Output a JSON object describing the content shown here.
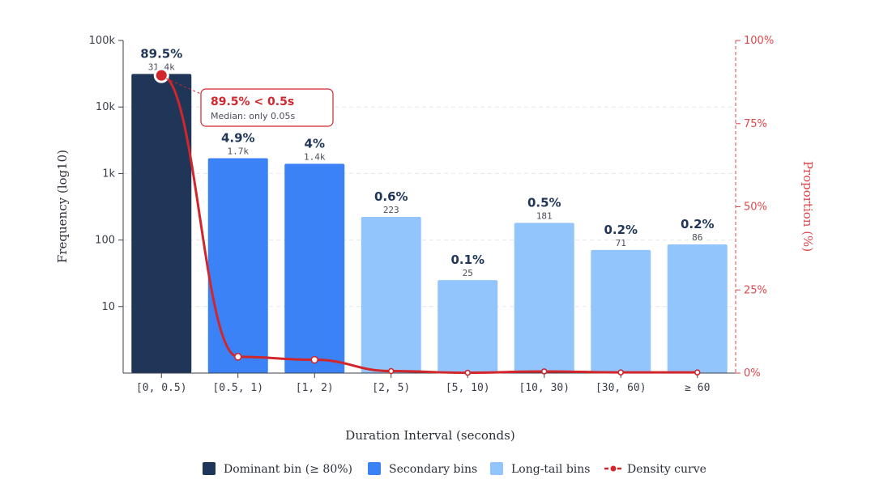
{
  "chart_data": {
    "type": "bar",
    "categories": [
      "[0, 0.5)",
      "[0.5, 1)",
      "[1, 2)",
      "[2, 5)",
      "[5, 10)",
      "[10, 30)",
      "[30, 60)",
      "≥ 60"
    ],
    "values": [
      31400,
      1700,
      1400,
      223,
      25,
      181,
      71,
      86
    ],
    "count_labels": [
      "31.4k",
      "1.7k",
      "1.4k",
      "223",
      "25",
      "181",
      "71",
      "86"
    ],
    "percent_labels": [
      "89.5%",
      "4.9%",
      "4%",
      "0.6%",
      "0.1%",
      "0.5%",
      "0.2%",
      "0.2%"
    ],
    "bar_groups": [
      "dominant",
      "secondary",
      "secondary",
      "longtail",
      "longtail",
      "longtail",
      "longtail",
      "longtail"
    ],
    "density": [
      89.5,
      4.9,
      4.0,
      0.6,
      0.1,
      0.5,
      0.2,
      0.2
    ],
    "xlabel": "Duration Interval (seconds)",
    "ylabel": "Frequency (log10)",
    "ylabel_right": "Proportion (%)",
    "y_scale": "log",
    "ylim": [
      1,
      100000
    ],
    "y_ticks": [
      10,
      100,
      1000,
      10000,
      100000
    ],
    "y_tick_labels": [
      "10",
      "100",
      "1k",
      "10k",
      "100k"
    ],
    "y2lim": [
      0,
      100
    ],
    "y2_ticks": [
      0,
      25,
      50,
      75,
      100
    ],
    "y2_tick_labels": [
      "0%",
      "25%",
      "50%",
      "75%",
      "100%"
    ],
    "annotation": {
      "title": "89.5% < 0.5s",
      "subtitle": "Median: only 0.05s"
    },
    "legend": [
      {
        "key": "dominant",
        "label": "Dominant bin (≥ 80%)"
      },
      {
        "key": "secondary",
        "label": "Secondary bins"
      },
      {
        "key": "longtail",
        "label": "Long-tail bins"
      },
      {
        "key": "density",
        "label": "Density curve"
      }
    ],
    "legend_position": "bottom",
    "colors": {
      "dominant": "#1f3658",
      "secondary": "#3b82f6",
      "longtail": "#93c5fd",
      "density": "#d0262c",
      "right_axis": "#e0474c",
      "grid": "#e5e7eb"
    }
  }
}
